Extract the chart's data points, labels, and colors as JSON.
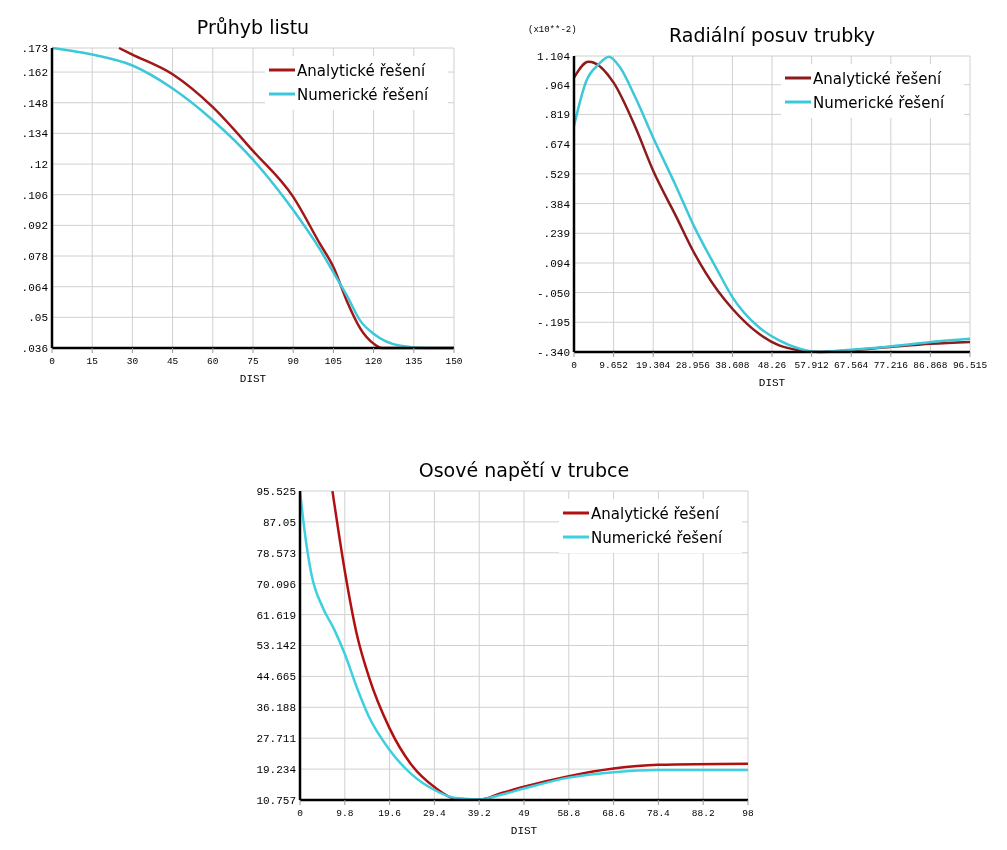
{
  "chart_data": [
    {
      "type": "line",
      "title": "Průhyb listu",
      "xlabel": "DIST",
      "xlim": [
        0,
        150
      ],
      "ylim": [
        0.036,
        0.173
      ],
      "xticks": [
        0,
        15,
        30,
        45,
        60,
        75,
        90,
        105,
        120,
        135,
        150
      ],
      "yticks": [
        {
          "value": 0.036,
          "label": ".036"
        },
        {
          "value": 0.05,
          "label": ".05"
        },
        {
          "value": 0.064,
          "label": ".064"
        },
        {
          "value": 0.078,
          "label": ".078"
        },
        {
          "value": 0.092,
          "label": ".092"
        },
        {
          "value": 0.106,
          "label": ".106"
        },
        {
          "value": 0.12,
          "label": ".12"
        },
        {
          "value": 0.134,
          "label": ".134"
        },
        {
          "value": 0.148,
          "label": ".148"
        },
        {
          "value": 0.162,
          "label": ".162"
        },
        {
          "value": 0.173,
          "label": ".173"
        }
      ],
      "grid": true,
      "legend": "top right",
      "series": [
        {
          "name": "Analytické řešení",
          "color": "#a01818",
          "x": [
            25,
            30,
            45,
            60,
            75,
            90,
            100,
            105,
            110,
            115,
            120,
            123,
            150
          ],
          "values": [
            0.173,
            0.17,
            0.161,
            0.146,
            0.126,
            0.105,
            0.0835,
            0.073,
            0.0575,
            0.045,
            0.038,
            0.036,
            0.036
          ]
        },
        {
          "name": "Numerické řešení",
          "color": "#3cc8d8",
          "x": [
            0,
            15,
            30,
            45,
            60,
            75,
            90,
            100,
            105,
            110,
            115,
            120,
            130,
            140,
            150
          ],
          "values": [
            0.173,
            0.17,
            0.165,
            0.1545,
            0.14,
            0.122,
            0.099,
            0.081,
            0.0705,
            0.06,
            0.0485,
            0.0425,
            0.037,
            0.036,
            0.036
          ]
        }
      ]
    },
    {
      "type": "line",
      "title": "Radiální posuv trubky",
      "xlabel": "DIST",
      "annotations": [
        "(x10**-2)"
      ],
      "xlim": [
        0,
        96.515
      ],
      "ylim": [
        -0.34,
        1.104
      ],
      "xticks": [
        0,
        9.652,
        19.304,
        28.956,
        38.608,
        48.26,
        57.912,
        67.564,
        77.216,
        86.868,
        96.515
      ],
      "yticks": [
        {
          "value": -0.34,
          "label": "-.340"
        },
        {
          "value": -0.195,
          "label": "-.195"
        },
        {
          "value": -0.05,
          "label": "-.050"
        },
        {
          "value": 0.094,
          "label": ".094"
        },
        {
          "value": 0.239,
          "label": ".239"
        },
        {
          "value": 0.384,
          "label": ".384"
        },
        {
          "value": 0.529,
          "label": ".529"
        },
        {
          "value": 0.674,
          "label": ".674"
        },
        {
          "value": 0.819,
          "label": ".819"
        },
        {
          "value": 0.964,
          "label": ".964"
        },
        1.104
      ],
      "grid": true,
      "legend": "top right",
      "series": [
        {
          "name": "Analytické řešení",
          "color": "#8c1c1c",
          "x": [
            0,
            3.5,
            5,
            9.652,
            15,
            19.304,
            25,
            29,
            35,
            38.6,
            45,
            50,
            55,
            60,
            67.5,
            77,
            87,
            96.515
          ],
          "values": [
            0.998,
            1.076,
            1.07,
            0.974,
            0.755,
            0.544,
            0.317,
            0.154,
            -0.04,
            -0.129,
            -0.25,
            -0.308,
            -0.332,
            -0.34,
            -0.332,
            -0.316,
            -0.3,
            -0.291
          ]
        },
        {
          "name": "Numerické řešení",
          "color": "#3cc8d8",
          "x": [
            0,
            3,
            6,
            8.5,
            11,
            15,
            19.304,
            25,
            29,
            35,
            38.6,
            45,
            50,
            55,
            60,
            67.5,
            77,
            87,
            96.515
          ],
          "values": [
            0.763,
            0.982,
            1.063,
            1.1,
            1.055,
            0.9,
            0.705,
            0.463,
            0.284,
            0.057,
            -0.072,
            -0.218,
            -0.283,
            -0.324,
            -0.34,
            -0.329,
            -0.313,
            -0.291,
            -0.275
          ]
        }
      ]
    },
    {
      "type": "line",
      "title": "Osové napětí v trubce",
      "xlabel": "DIST",
      "xlim": [
        0,
        98
      ],
      "ylim": [
        10.757,
        95.525
      ],
      "xticks": [
        0,
        9.8,
        19.6,
        29.4,
        39.2,
        49,
        58.8,
        68.6,
        78.4,
        88.2,
        98
      ],
      "yticks": [
        10.757,
        19.234,
        27.711,
        36.188,
        44.665,
        53.142,
        61.619,
        70.096,
        78.573,
        87.05,
        95.525
      ],
      "grid": true,
      "legend": "top right",
      "series": [
        {
          "name": "Analytické řešení",
          "color": "#b01010",
          "x": [
            7.1,
            9.8,
            12.5,
            15,
            19.6,
            24.5,
            29.4,
            34,
            39.2,
            44,
            49,
            58.8,
            68.6,
            78.4,
            98
          ],
          "values": [
            95.5,
            73.6,
            55.8,
            44.8,
            30.4,
            20.2,
            14.3,
            11.1,
            10.8,
            12.6,
            14.4,
            17.3,
            19.4,
            20.4,
            20.7
          ]
        },
        {
          "name": "Numerické řešení",
          "color": "#3cd0e0",
          "x": [
            0,
            1,
            2.5,
            5,
            7.5,
            9.8,
            12.5,
            15,
            19.6,
            24.5,
            29.4,
            34,
            39.2,
            44,
            49,
            58.8,
            68.6,
            78.4,
            98
          ],
          "values": [
            95.5,
            84.6,
            72.7,
            63.5,
            57.5,
            50.8,
            41.4,
            33.8,
            24.5,
            17.7,
            13.5,
            11.3,
            10.9,
            12.2,
            13.9,
            16.9,
            18.4,
            19,
            19
          ]
        }
      ]
    }
  ]
}
